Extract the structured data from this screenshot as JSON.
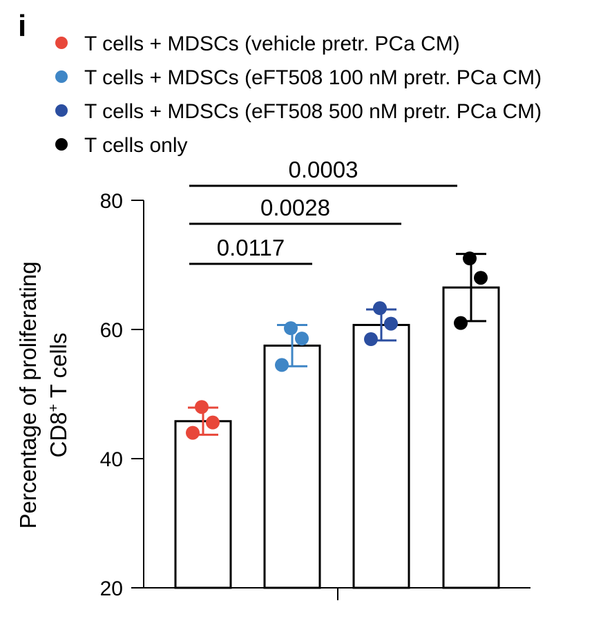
{
  "panel_label": "i",
  "chart_data": {
    "type": "bar",
    "ylabel": "Percentage of proliferating",
    "ylabel_line2": "CD8",
    "ylabel_sup": "+",
    "ylabel_line2_tail": " T cells",
    "ylim": [
      20,
      80
    ],
    "yticks": [
      "20",
      "40",
      "60",
      "80"
    ],
    "ytick_values": [
      20,
      40,
      60,
      80
    ],
    "series": [
      {
        "name": "T cells + MDSCs (vehicle pretr. PCa CM)",
        "color": "#e8473a",
        "mean": 45.8,
        "sd": 2.1,
        "points": [
          48.0,
          45.6,
          44.0
        ]
      },
      {
        "name": "T cells + MDSCs (eFT508 100 nM pretr. PCa CM)",
        "color": "#3f86c6",
        "mean": 57.5,
        "sd": 3.2,
        "points": [
          60.2,
          58.6,
          54.5
        ]
      },
      {
        "name": "T cells + MDSCs (eFT508 500 nM pretr. PCa CM)",
        "color": "#2b4ea0",
        "mean": 60.7,
        "sd": 2.4,
        "points": [
          63.3,
          60.9,
          58.5
        ]
      },
      {
        "name": "T cells only",
        "color": "#000000",
        "mean": 66.5,
        "sd": 5.2,
        "points": [
          71.0,
          68.0,
          61.0
        ]
      }
    ],
    "comparisons": [
      {
        "from": 0,
        "to": 1,
        "label": "0.0117"
      },
      {
        "from": 0,
        "to": 2,
        "label": "0.0028"
      },
      {
        "from": 0,
        "to": 3,
        "label": "0.0003"
      }
    ],
    "legend_position": "top",
    "grid": false
  }
}
